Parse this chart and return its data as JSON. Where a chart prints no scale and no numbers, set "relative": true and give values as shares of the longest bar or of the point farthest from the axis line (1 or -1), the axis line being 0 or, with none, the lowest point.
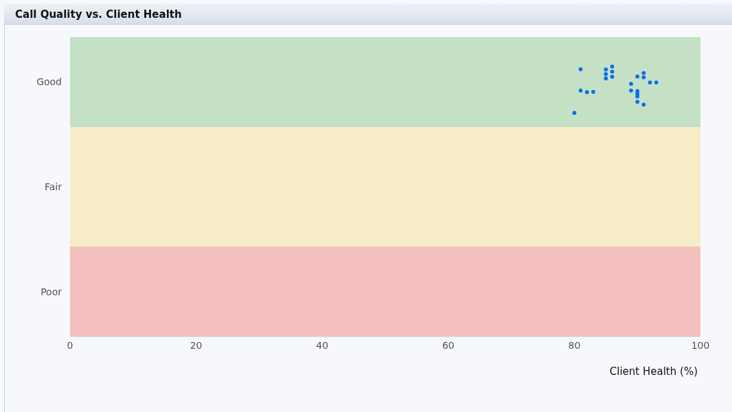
{
  "chart_data": {
    "type": "scatter",
    "title": "Call Quality vs. Client Health",
    "xlabel": "Client Health (%)",
    "x": [
      81,
      81,
      82,
      83,
      80,
      85,
      85,
      85,
      86,
      86,
      86,
      90,
      91,
      91,
      89,
      92,
      93,
      89,
      90,
      90,
      90,
      90,
      91
    ],
    "values": [
      0.99,
      0.911,
      0.905,
      0.906,
      0.828,
      0.989,
      0.972,
      0.956,
      1,
      0.981,
      0.962,
      0.963,
      0.976,
      0.96,
      0.936,
      0.941,
      0.941,
      0.911,
      0.909,
      0.898,
      0.889,
      0.869,
      0.859
    ],
    "relative": true,
    "color": "#0b6ef0",
    "marker": "circle",
    "xlim": [
      0,
      100
    ],
    "xticks": [
      0,
      20,
      40,
      60,
      80,
      100
    ],
    "bands": [
      {
        "axis": "y",
        "from": 0.776,
        "to": 1.109,
        "color": "#c5e1c5",
        "label": "Good"
      },
      {
        "axis": "y",
        "from": 0.333,
        "to": 0.776,
        "color": "#f7edc8",
        "label": "Fair"
      },
      {
        "axis": "y",
        "from": 0,
        "to": 0.333,
        "color": "#f4c0bd",
        "label": "Poor"
      }
    ]
  }
}
